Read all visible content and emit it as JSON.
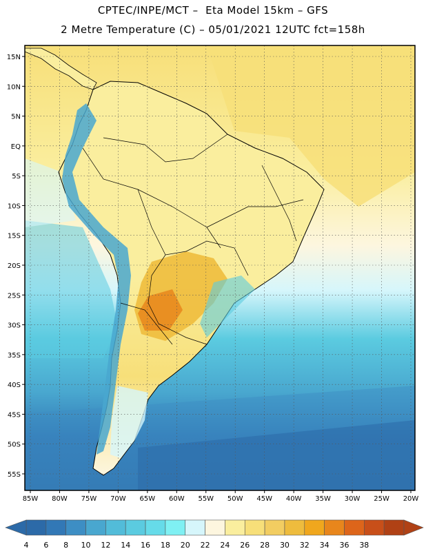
{
  "header": {
    "line1": "CPTEC/INPE/MCT –  Eta Model 15km – GFS",
    "line2": "2 Metre Temperature (C) – 05/01/2021 12UTC fct=158h"
  },
  "axes": {
    "lon_labels": [
      "85W",
      "80W",
      "75W",
      "70W",
      "65W",
      "60W",
      "55W",
      "50W",
      "45W",
      "40W",
      "35W",
      "30W",
      "25W",
      "20W"
    ],
    "lat_labels": [
      "15N",
      "10N",
      "5N",
      "EQ",
      "5S",
      "10S",
      "15S",
      "20S",
      "25S",
      "30S",
      "35S",
      "40S",
      "45S",
      "50S",
      "55S"
    ]
  },
  "colorbar": {
    "labels": [
      "4",
      "6",
      "8",
      "10",
      "12",
      "14",
      "16",
      "18",
      "20",
      "22",
      "24",
      "26",
      "28",
      "30",
      "32",
      "34",
      "36",
      "38"
    ],
    "colors": [
      "#2c6aa8",
      "#3278b6",
      "#3d8ec4",
      "#49a7cf",
      "#52bcd9",
      "#5bcbe0",
      "#66dbe9",
      "#7ff0f3",
      "#d6f6fb",
      "#fdf6df",
      "#faee9e",
      "#f7df79",
      "#f2cd61",
      "#eebc3d",
      "#f0a71d",
      "#e8861c",
      "#dd651a",
      "#c84f19",
      "#b04115"
    ],
    "low_color": "#2c6aa8",
    "high_color": "#b04115"
  }
}
